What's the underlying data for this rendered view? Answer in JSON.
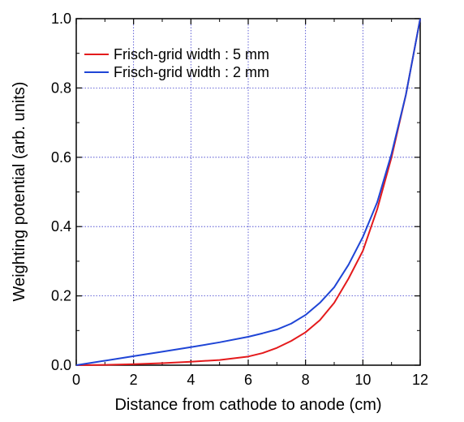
{
  "chart_data": {
    "type": "line",
    "xlabel": "Distance from cathode to anode (cm)",
    "ylabel": "Weighting potential (arb. units)",
    "xlim": [
      0,
      12
    ],
    "ylim": [
      0,
      1.0
    ],
    "x_ticks": [
      "0",
      "2",
      "4",
      "6",
      "8",
      "10",
      "12"
    ],
    "y_ticks": [
      "0.0",
      "0.2",
      "0.4",
      "0.6",
      "0.8",
      "1.0"
    ],
    "grid": true,
    "legend_position": "top-left",
    "series": [
      {
        "name": "Frisch-grid width : 5 mm",
        "color": "#e41a1c",
        "x": [
          0,
          1,
          2,
          3,
          4,
          5,
          6,
          6.5,
          7,
          7.5,
          8,
          8.5,
          9,
          9.5,
          10,
          10.5,
          11,
          11.5,
          12
        ],
        "y": [
          0.0,
          0.001,
          0.003,
          0.006,
          0.01,
          0.015,
          0.025,
          0.035,
          0.05,
          0.07,
          0.095,
          0.13,
          0.18,
          0.25,
          0.33,
          0.45,
          0.6,
          0.78,
          1.0
        ]
      },
      {
        "name": "Frisch-grid width : 2 mm",
        "color": "#1f45d6",
        "x": [
          0,
          1,
          2,
          3,
          4,
          5,
          6,
          6.5,
          7,
          7.5,
          8,
          8.5,
          9,
          9.5,
          10,
          10.5,
          11,
          11.5,
          12
        ],
        "y": [
          0.0,
          0.013,
          0.026,
          0.039,
          0.052,
          0.066,
          0.082,
          0.092,
          0.103,
          0.12,
          0.145,
          0.18,
          0.225,
          0.29,
          0.37,
          0.47,
          0.61,
          0.78,
          1.0
        ]
      }
    ]
  }
}
